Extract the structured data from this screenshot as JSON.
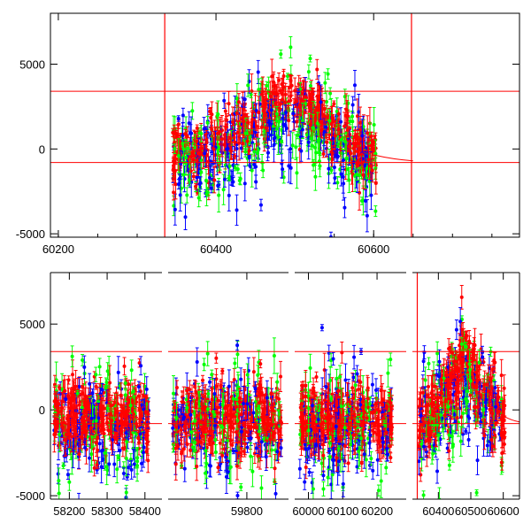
{
  "colors": {
    "red": "#ff0000",
    "green": "#00ff00",
    "blue": "#0000ff",
    "axis": "#000000"
  },
  "chart_data": [
    {
      "type": "scatter",
      "title": "",
      "xlabel": "",
      "ylabel": "",
      "xlim": [
        60190,
        60785
      ],
      "ylim": [
        -5200,
        8000
      ],
      "xticks": [
        60200,
        60400,
        60600
      ],
      "yticks": [
        -5000,
        0,
        5000
      ],
      "error_bars": true,
      "hlines": [
        3400,
        -800
      ],
      "vlines": [
        60335,
        60648
      ],
      "series": [
        {
          "color": "red",
          "x_range": [
            60345,
            60600
          ],
          "peak_x": 60488,
          "peak_y": 3200,
          "base_y": -300,
          "spread": 1500
        },
        {
          "color": "green",
          "x_range": [
            60350,
            60600
          ],
          "peak_x": 60488,
          "peak_y": 2500,
          "base_y": -600,
          "spread": 1900
        },
        {
          "color": "blue",
          "x_range": [
            60350,
            60600
          ],
          "peak_x": 60488,
          "peak_y": 2300,
          "base_y": -900,
          "spread": 2000
        }
      ],
      "trend": {
        "x": [
          60600,
          60650
        ],
        "y": [
          -350,
          -700
        ]
      }
    },
    {
      "type": "scatter",
      "title": "",
      "xlabel": "",
      "ylabel": "",
      "broken_axis": true,
      "ylim": [
        -5200,
        8000
      ],
      "yticks": [
        -5000,
        0,
        5000
      ],
      "error_bars": true,
      "hlines": [
        3400,
        -800
      ],
      "segments": [
        {
          "xlim": [
            58150,
            58445
          ],
          "xticks": [
            58200,
            58300,
            58400
          ],
          "data_range": [
            58160,
            58410
          ],
          "peak_x": null
        },
        {
          "xlim": [
            59630,
            59890
          ],
          "xticks": [
            59800
          ],
          "data_range": [
            59640,
            59875
          ],
          "peak_x": null
        },
        {
          "xlim": [
            59960,
            60285
          ],
          "xticks": [
            60000,
            60100,
            60200
          ],
          "data_range": [
            59975,
            60245
          ],
          "peak_x": null
        },
        {
          "xlim": [
            60320,
            60650
          ],
          "xticks": [
            60400,
            60500,
            60600
          ],
          "data_range": [
            60340,
            60605
          ],
          "peak_x": 60488,
          "vlines": [
            60335
          ]
        }
      ]
    }
  ]
}
